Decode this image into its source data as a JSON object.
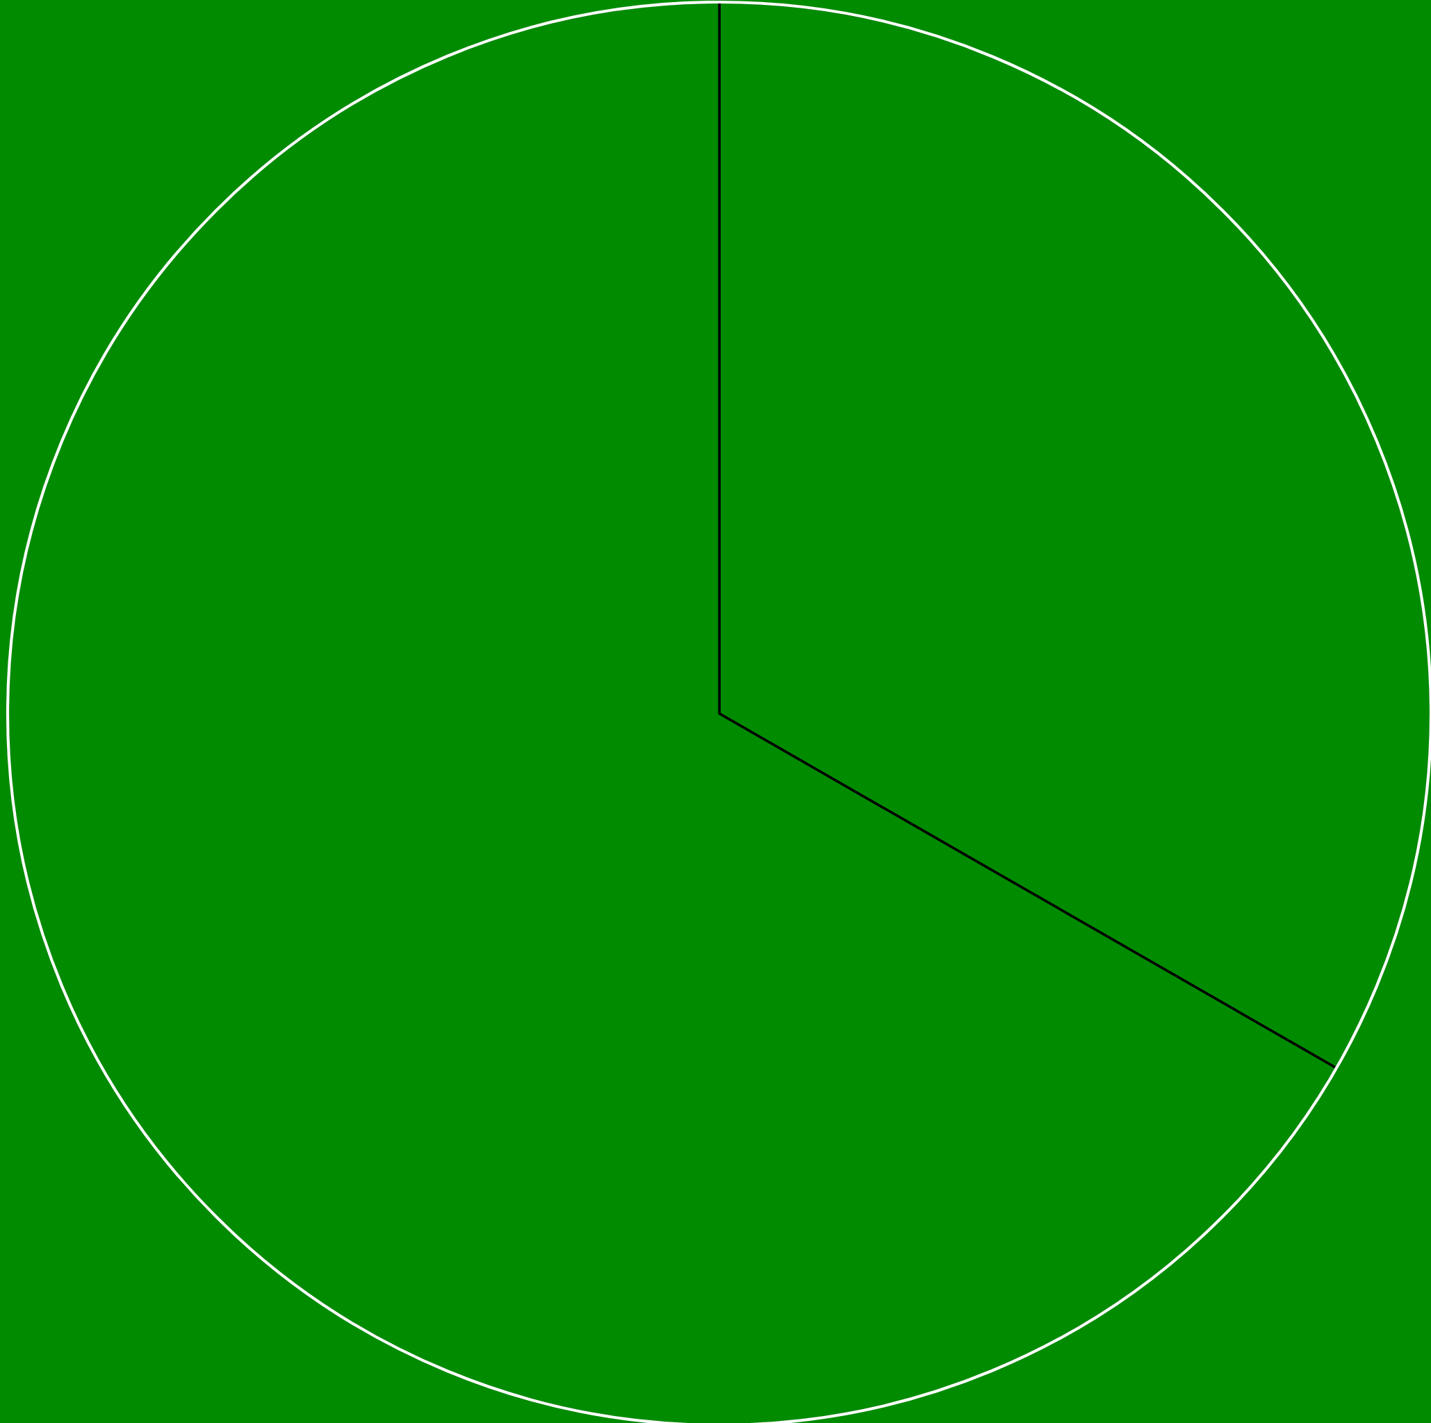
{
  "chart_data": {
    "type": "pie",
    "categories": [
      null,
      null
    ],
    "values": [
      33.3,
      66.7
    ],
    "colors": [
      "#008b00",
      "#008b00"
    ]
  }
}
